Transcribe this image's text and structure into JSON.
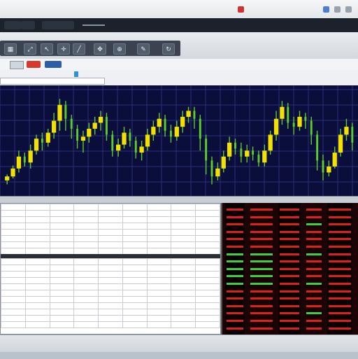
{
  "titlebar": {
    "items": [
      "",
      "",
      "",
      "",
      "",
      ""
    ]
  },
  "menu": [
    "",
    "",
    ""
  ],
  "toolbar": {
    "icons": [
      "grid-icon",
      "arrows-icon",
      "cursor-icon",
      "crosshair-icon",
      "line-icon",
      "pan-icon",
      "zoom-icon",
      "draw-icon",
      "refresh-icon"
    ]
  },
  "tabs": [
    "",
    "",
    "",
    ""
  ],
  "ticker": "",
  "chart": {
    "bg": "#0b0e3a",
    "grid_color": "#2a2f7a",
    "up_color": "#f2e000",
    "wick_color": "#5ccc2a",
    "candles": [
      [
        0.1,
        0.14,
        0.06,
        0.16
      ],
      [
        0.14,
        0.22,
        0.12,
        0.25
      ],
      [
        0.22,
        0.34,
        0.18,
        0.4
      ],
      [
        0.34,
        0.28,
        0.24,
        0.38
      ],
      [
        0.28,
        0.4,
        0.22,
        0.46
      ],
      [
        0.4,
        0.52,
        0.36,
        0.56
      ],
      [
        0.52,
        0.48,
        0.4,
        0.58
      ],
      [
        0.48,
        0.58,
        0.44,
        0.62
      ],
      [
        0.58,
        0.7,
        0.52,
        0.78
      ],
      [
        0.7,
        0.86,
        0.6,
        0.92
      ],
      [
        0.86,
        0.72,
        0.6,
        0.9
      ],
      [
        0.72,
        0.62,
        0.52,
        0.76
      ],
      [
        0.62,
        0.5,
        0.42,
        0.66
      ],
      [
        0.5,
        0.54,
        0.38,
        0.6
      ],
      [
        0.54,
        0.62,
        0.48,
        0.68
      ],
      [
        0.62,
        0.68,
        0.56,
        0.74
      ],
      [
        0.68,
        0.74,
        0.6,
        0.8
      ],
      [
        0.74,
        0.56,
        0.5,
        0.78
      ],
      [
        0.56,
        0.4,
        0.34,
        0.6
      ],
      [
        0.4,
        0.46,
        0.34,
        0.52
      ],
      [
        0.46,
        0.58,
        0.42,
        0.64
      ],
      [
        0.58,
        0.5,
        0.44,
        0.62
      ],
      [
        0.5,
        0.38,
        0.32,
        0.54
      ],
      [
        0.38,
        0.44,
        0.3,
        0.5
      ],
      [
        0.44,
        0.56,
        0.4,
        0.62
      ],
      [
        0.56,
        0.64,
        0.5,
        0.7
      ],
      [
        0.64,
        0.72,
        0.58,
        0.78
      ],
      [
        0.72,
        0.6,
        0.54,
        0.76
      ],
      [
        0.6,
        0.54,
        0.48,
        0.66
      ],
      [
        0.54,
        0.64,
        0.5,
        0.7
      ],
      [
        0.64,
        0.74,
        0.58,
        0.8
      ],
      [
        0.74,
        0.8,
        0.68,
        0.84
      ],
      [
        0.8,
        0.72,
        0.62,
        0.84
      ],
      [
        0.72,
        0.52,
        0.4,
        0.76
      ],
      [
        0.52,
        0.3,
        0.16,
        0.56
      ],
      [
        0.3,
        0.14,
        0.06,
        0.34
      ],
      [
        0.14,
        0.22,
        0.1,
        0.28
      ],
      [
        0.22,
        0.34,
        0.18,
        0.4
      ],
      [
        0.34,
        0.48,
        0.3,
        0.54
      ],
      [
        0.48,
        0.42,
        0.36,
        0.52
      ],
      [
        0.42,
        0.34,
        0.28,
        0.48
      ],
      [
        0.34,
        0.4,
        0.28,
        0.46
      ],
      [
        0.4,
        0.36,
        0.3,
        0.44
      ],
      [
        0.36,
        0.28,
        0.24,
        0.4
      ],
      [
        0.28,
        0.4,
        0.24,
        0.46
      ],
      [
        0.4,
        0.56,
        0.36,
        0.6
      ],
      [
        0.56,
        0.72,
        0.5,
        0.8
      ],
      [
        0.72,
        0.84,
        0.66,
        0.9
      ],
      [
        0.84,
        0.68,
        0.62,
        0.88
      ],
      [
        0.68,
        0.64,
        0.56,
        0.74
      ],
      [
        0.64,
        0.74,
        0.6,
        0.8
      ],
      [
        0.74,
        0.7,
        0.62,
        0.78
      ],
      [
        0.7,
        0.56,
        0.46,
        0.74
      ],
      [
        0.56,
        0.3,
        0.2,
        0.6
      ],
      [
        0.3,
        0.18,
        0.1,
        0.36
      ],
      [
        0.18,
        0.24,
        0.14,
        0.3
      ],
      [
        0.24,
        0.38,
        0.22,
        0.44
      ],
      [
        0.38,
        0.56,
        0.34,
        0.62
      ],
      [
        0.56,
        0.64,
        0.5,
        0.72
      ],
      [
        0.64,
        0.48,
        0.4,
        0.68
      ]
    ]
  },
  "splitter": [
    "",
    "",
    "",
    "",
    ""
  ],
  "left_table": {
    "top_rows": 9,
    "bottom_rows": 11,
    "cols": 9
  },
  "right_panel": {
    "rows": 17,
    "bg": "#1c0404",
    "red": "#d8221c",
    "green": "#3fcf3a"
  },
  "status": [
    "",
    "",
    ""
  ]
}
